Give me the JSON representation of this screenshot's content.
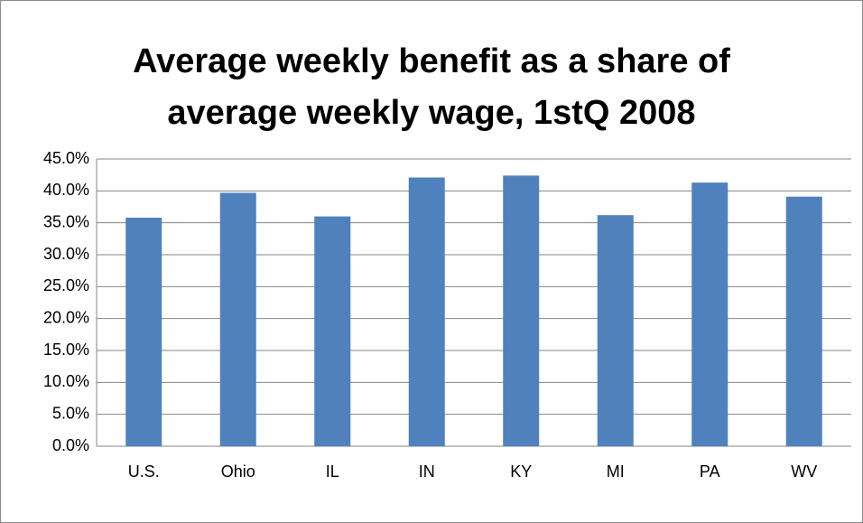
{
  "chart_data": {
    "type": "bar",
    "title": "Average weekly benefit as a share of average weekly wage, 1stQ 2008",
    "categories": [
      "U.S.",
      "Ohio",
      "IL",
      "IN",
      "KY",
      "MI",
      "PA",
      "WV"
    ],
    "values": [
      35.8,
      39.7,
      36.0,
      42.1,
      42.4,
      36.2,
      41.3,
      39.1
    ],
    "color": "#4f81bd",
    "ylim": [
      0,
      45
    ],
    "yticks": [
      {
        "value": 0,
        "label": "0.0%"
      },
      {
        "value": 5,
        "label": "5.0%"
      },
      {
        "value": 10,
        "label": "10.0%"
      },
      {
        "value": 15,
        "label": "15.0%"
      },
      {
        "value": 20,
        "label": "20.0%"
      },
      {
        "value": 25,
        "label": "25.0%"
      },
      {
        "value": 30,
        "label": "30.0%"
      },
      {
        "value": 35,
        "label": "35.0%"
      },
      {
        "value": 40,
        "label": "40.0%"
      },
      {
        "value": 45,
        "label": "45.0%"
      }
    ],
    "grid": true
  }
}
